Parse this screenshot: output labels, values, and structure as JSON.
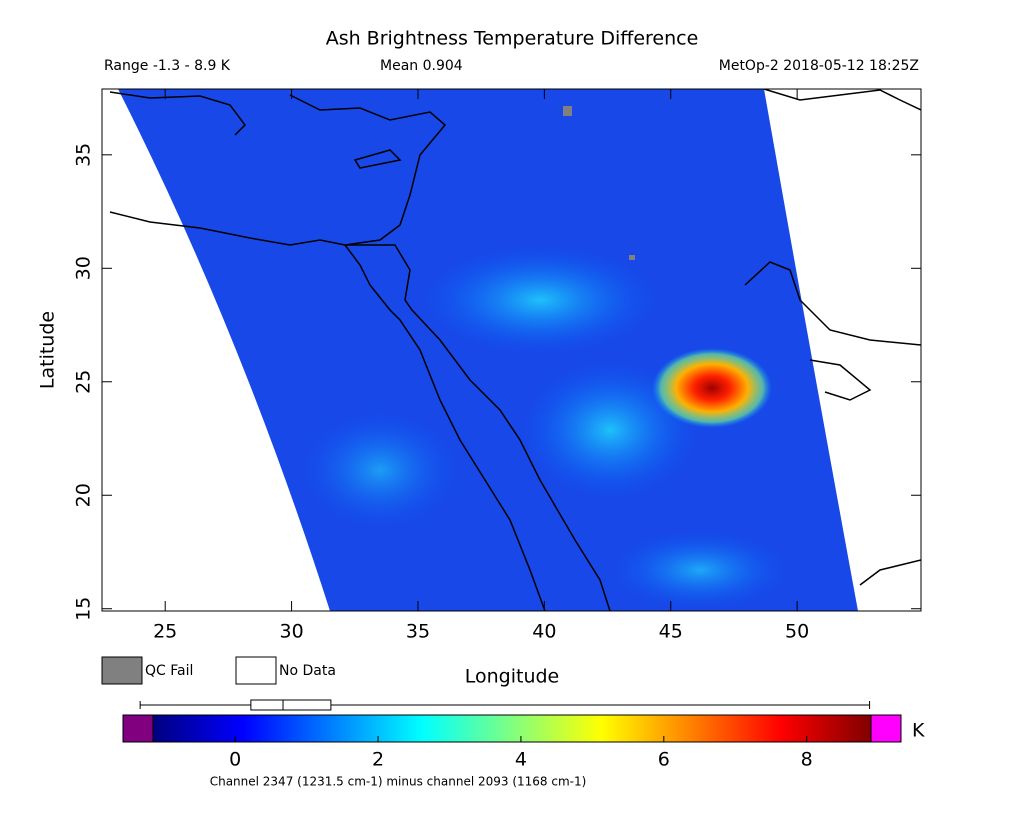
{
  "chart_data": {
    "type": "map",
    "title": "Ash Brightness Temperature Difference",
    "range_text": "Range -1.3 - 8.9 K",
    "mean_text": "Mean 0.904",
    "source_text": "MetOp-2 2018-05-12 18:25Z",
    "xlabel": "Longitude",
    "ylabel": "Latitude",
    "xlim": [
      22.5,
      54.9
    ],
    "ylim": [
      14.9,
      37.9
    ],
    "xticks": [
      25,
      30,
      35,
      40,
      45,
      50
    ],
    "yticks": [
      15,
      20,
      25,
      30,
      35
    ],
    "legend": [
      {
        "name": "QC Fail",
        "color": "#808080"
      },
      {
        "name": "No Data",
        "color": "#ffffff"
      }
    ],
    "colorbar": {
      "clim": [
        -1.15,
        8.9
      ],
      "ticks": [
        0,
        2,
        4,
        6,
        8
      ],
      "unit": "K",
      "under_color": "#800080",
      "over_color": "#ff00ff",
      "colormap": [
        "#000080",
        "#0000ff",
        "#0080ff",
        "#00ffff",
        "#80ff80",
        "#ffff00",
        "#ff8000",
        "#ff0000",
        "#800000"
      ],
      "boxplot": {
        "min": -1.33,
        "q1": 0.22,
        "median": 0.67,
        "q3": 1.34,
        "max": 8.88
      },
      "label": "Channel 2347 (1231.5 cm-1) minus channel 2093 (1168 cm-1)"
    }
  }
}
